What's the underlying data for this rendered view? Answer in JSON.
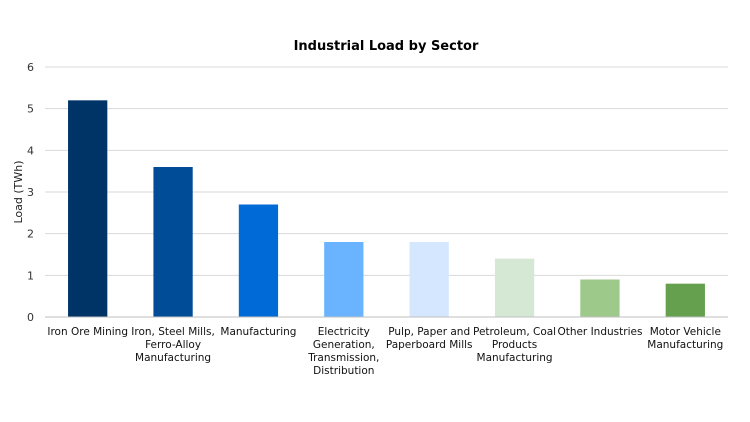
{
  "chart_data": {
    "type": "bar",
    "title": "Industrial Load by Sector",
    "xlabel": "",
    "ylabel": "Load (TWh)",
    "ylim": [
      0,
      6
    ],
    "yticks": [
      "0",
      "1",
      "2",
      "3",
      "4",
      "5",
      "6"
    ],
    "grid": true,
    "legend": "none",
    "categories": [
      "Iron Ore Mining",
      "Iron, Steel Mills, Ferro-Alloy Manufacturing",
      "Manufacturing",
      "Electricity Generation, Transmission, Distribution",
      "Pulp, Paper and Paperboard Mills",
      "Petroleum, Coal Products Manufacturing",
      "Other Industries",
      "Motor Vehicle Manufacturing"
    ],
    "category_lines": [
      [
        "Iron Ore Mining"
      ],
      [
        "Iron, Steel Mills,",
        "Ferro-Alloy",
        "Manufacturing"
      ],
      [
        "Manufacturing"
      ],
      [
        "Electricity",
        "Generation,",
        "Transmission,",
        "Distribution"
      ],
      [
        "Pulp, Paper and",
        "Paperboard Mills"
      ],
      [
        "Petroleum, Coal",
        "Products",
        "Manufacturing"
      ],
      [
        "Other Industries"
      ],
      [
        "Motor Vehicle",
        "Manufacturing"
      ]
    ],
    "values": [
      5.2,
      3.6,
      2.7,
      1.8,
      1.8,
      1.4,
      0.9,
      0.8
    ],
    "colors": [
      "#003366",
      "#004C97",
      "#006AD6",
      "#6AB4FF",
      "#D4E7FF",
      "#D5E8D4",
      "#9DC98A",
      "#65A04F"
    ]
  }
}
